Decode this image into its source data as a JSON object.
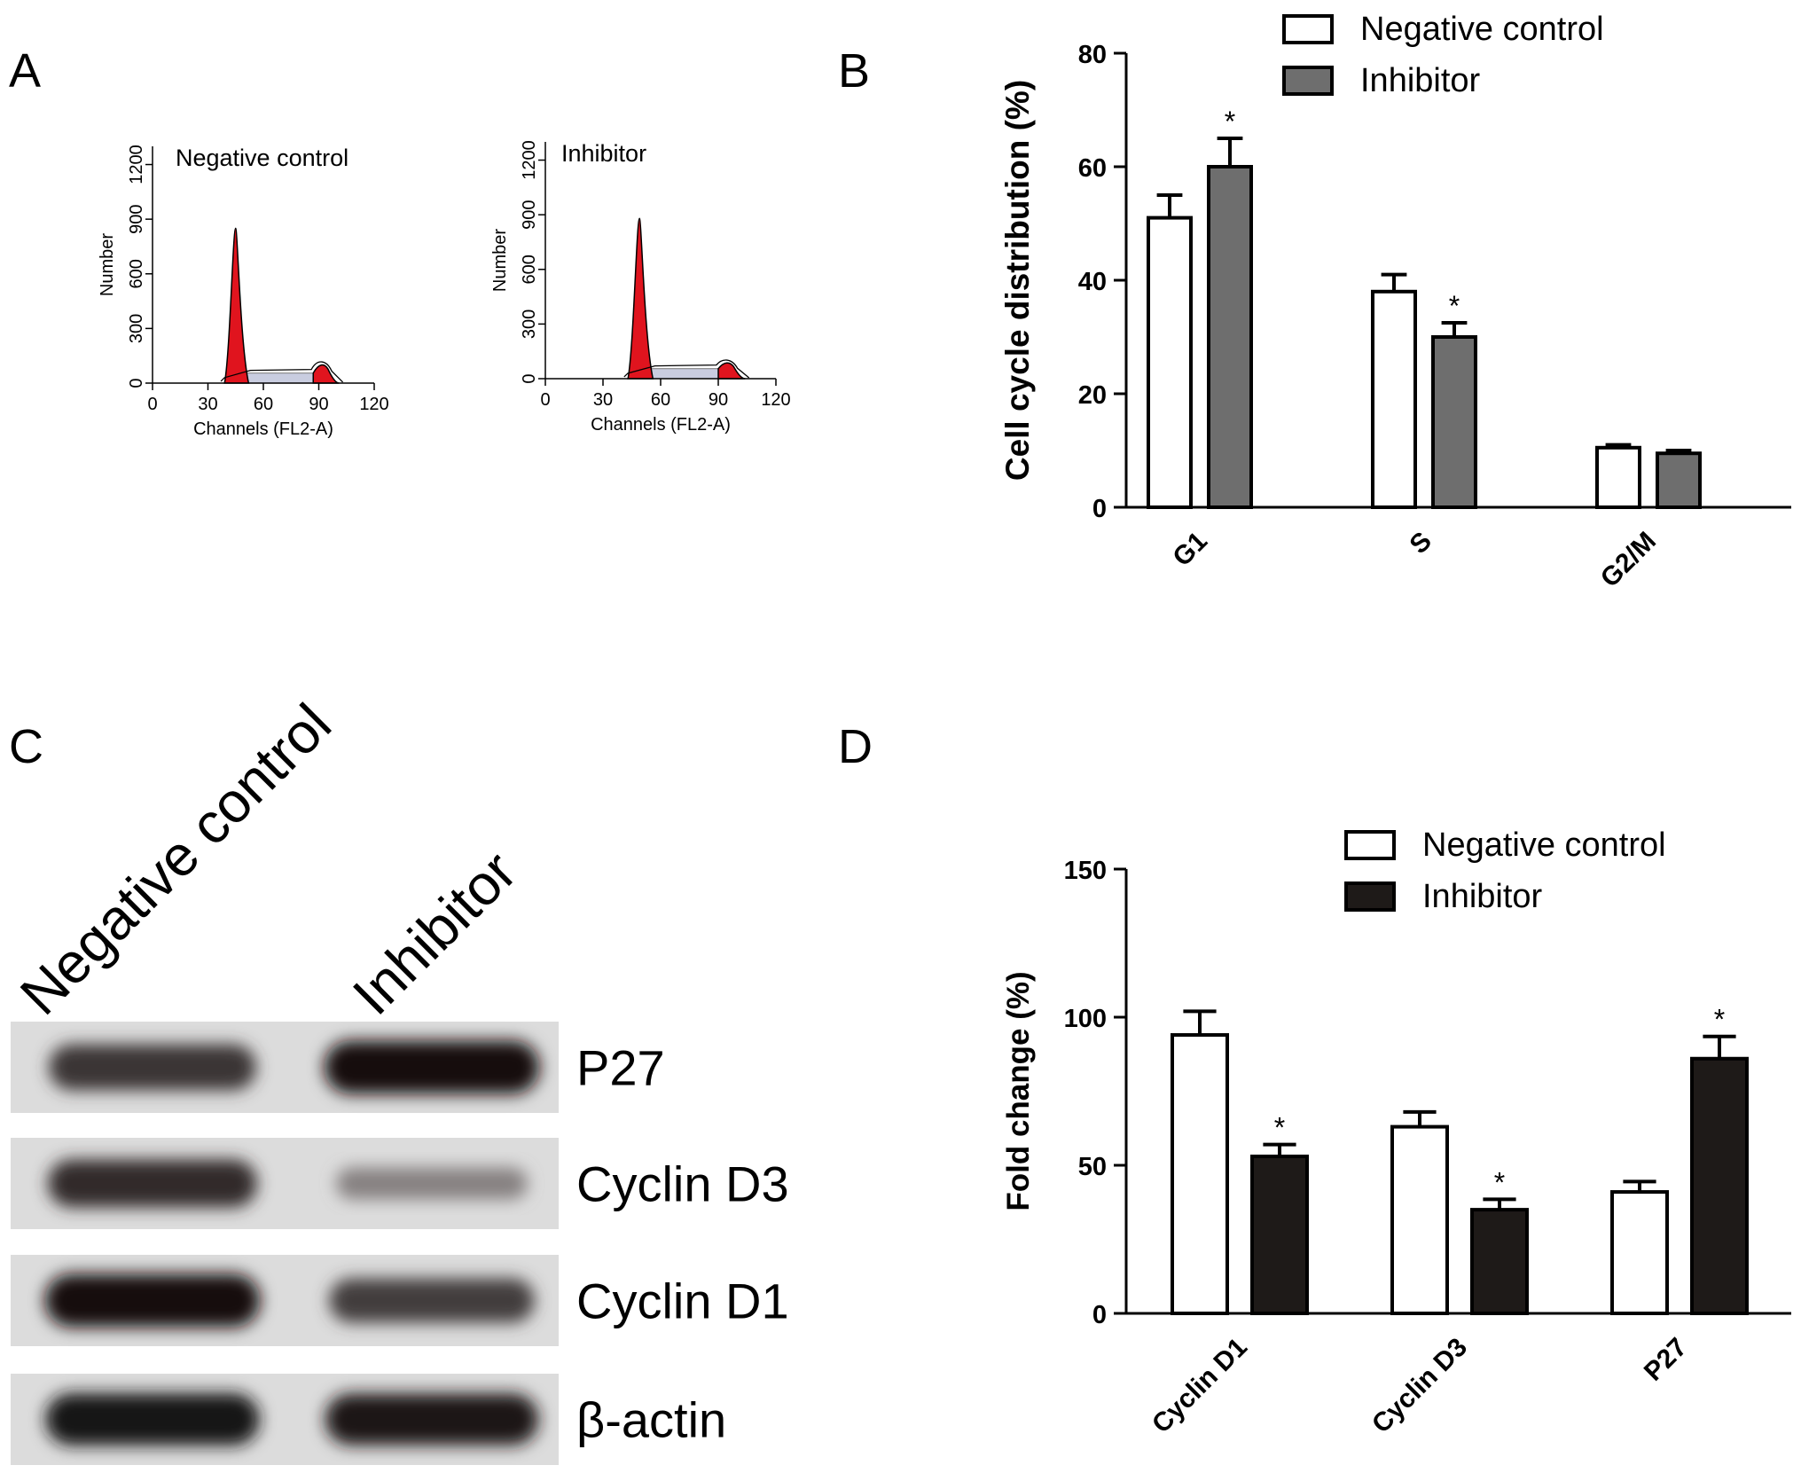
{
  "panels": {
    "A": "A",
    "B": "B",
    "C": "C",
    "D": "D"
  },
  "histograms": [
    {
      "title": "Negative control",
      "ylabel": "Number",
      "xlabel": "Channels (FL2-A)",
      "yticks": [
        "0",
        "300",
        "600",
        "900",
        "1200"
      ],
      "xticks": [
        "0",
        "30",
        "60",
        "90",
        "120"
      ],
      "xlim": [
        0,
        120
      ],
      "ylim": [
        0,
        1300
      ],
      "g1_peak": {
        "x": 45,
        "height": 850
      },
      "g2_peak": {
        "x": 92,
        "height": 110
      },
      "colors": {
        "g1": "#e0141e",
        "g2": "#e0141e",
        "s": "#c9cde0"
      }
    },
    {
      "title": "Inhibitor",
      "ylabel": "Number",
      "xlabel": "Channels (FL2-A)",
      "yticks": [
        "0",
        "300",
        "600",
        "900",
        "1200"
      ],
      "xticks": [
        "0",
        "30",
        "60",
        "90",
        "120"
      ],
      "xlim": [
        0,
        120
      ],
      "ylim": [
        0,
        1300
      ],
      "g1_peak": {
        "x": 49,
        "height": 880
      },
      "g2_peak": {
        "x": 95,
        "height": 95
      },
      "colors": {
        "g1": "#e0141e",
        "g2": "#e0141e",
        "s": "#c9cde0"
      }
    }
  ],
  "western_blot": {
    "lanes": [
      "Negative control",
      "Inhibitor"
    ],
    "bands": [
      {
        "label": "P27",
        "intensity": [
          0.75,
          0.95
        ]
      },
      {
        "label": "Cyclin D3",
        "intensity": [
          0.8,
          0.35
        ]
      },
      {
        "label": "Cyclin D1",
        "intensity": [
          0.95,
          0.7
        ]
      },
      {
        "label": "β-actin",
        "intensity": [
          0.92,
          0.9
        ]
      }
    ]
  },
  "chart_data": [
    {
      "type": "bar",
      "ylabel": "Cell cycle distribution (%)",
      "xlabel": "",
      "title": "",
      "categories": [
        "G1",
        "S",
        "G2/M"
      ],
      "ylim": [
        0,
        80
      ],
      "yticks": [
        "0",
        "20",
        "40",
        "60",
        "80"
      ],
      "legend_position": "top-right",
      "series": [
        {
          "name": "Negative control",
          "values": [
            51,
            38,
            10.5
          ],
          "errors": [
            4,
            3,
            0.5
          ],
          "color": "#ffffff"
        },
        {
          "name": "Inhibitor",
          "values": [
            60,
            30,
            9.5
          ],
          "errors": [
            5,
            2.5,
            0.5
          ],
          "color": "#6e6e6e"
        }
      ],
      "significance": [
        [
          false,
          true
        ],
        [
          false,
          true
        ],
        [
          false,
          false
        ]
      ],
      "significance_mark": "*"
    },
    {
      "type": "bar",
      "ylabel": "Fold change (%)",
      "xlabel": "",
      "title": "",
      "categories": [
        "Cyclin D1",
        "Cyclin D3",
        "P27"
      ],
      "ylim": [
        0,
        150
      ],
      "yticks": [
        "0",
        "50",
        "100",
        "150"
      ],
      "legend_position": "top-right",
      "series": [
        {
          "name": "Negative control",
          "values": [
            94,
            63,
            41
          ],
          "errors": [
            8,
            5,
            3.5
          ],
          "color": "#ffffff"
        },
        {
          "name": "Inhibitor",
          "values": [
            53,
            35,
            86
          ],
          "errors": [
            4,
            3.5,
            7.5
          ],
          "color": "#1e1a18"
        }
      ],
      "significance": [
        [
          false,
          true
        ],
        [
          false,
          true
        ],
        [
          false,
          true
        ]
      ],
      "significance_mark": "*"
    }
  ]
}
